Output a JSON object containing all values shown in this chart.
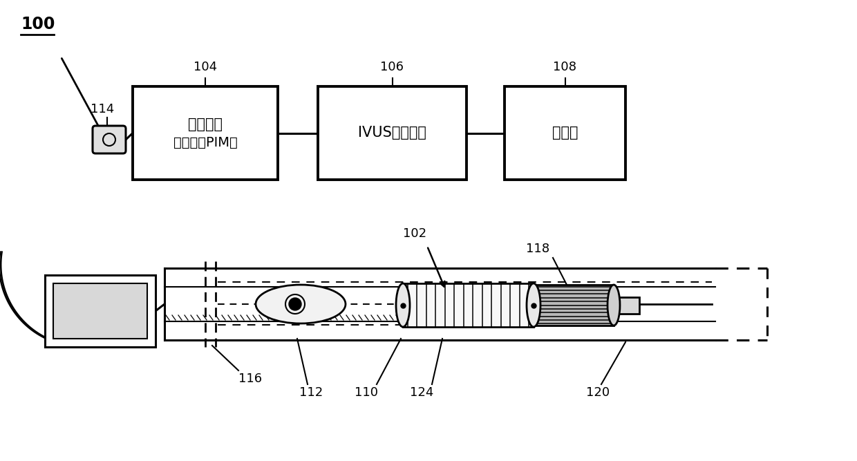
{
  "bg_color": "#ffffff",
  "line_color": "#000000",
  "label_100": "100",
  "label_104": "104",
  "label_106": "106",
  "label_108": "108",
  "label_114": "114",
  "label_116": "116",
  "label_102": "102",
  "label_118": "118",
  "label_112": "112",
  "label_110": "110",
  "label_124": "124",
  "label_120": "120",
  "box_104_text1": "患者接口",
  "box_104_text2": "监测器（PIM）",
  "box_106_text": "IVUS处理系统",
  "box_108_text": "监测器",
  "font_size_label": 13,
  "font_size_box": 15,
  "font_size_100": 17
}
